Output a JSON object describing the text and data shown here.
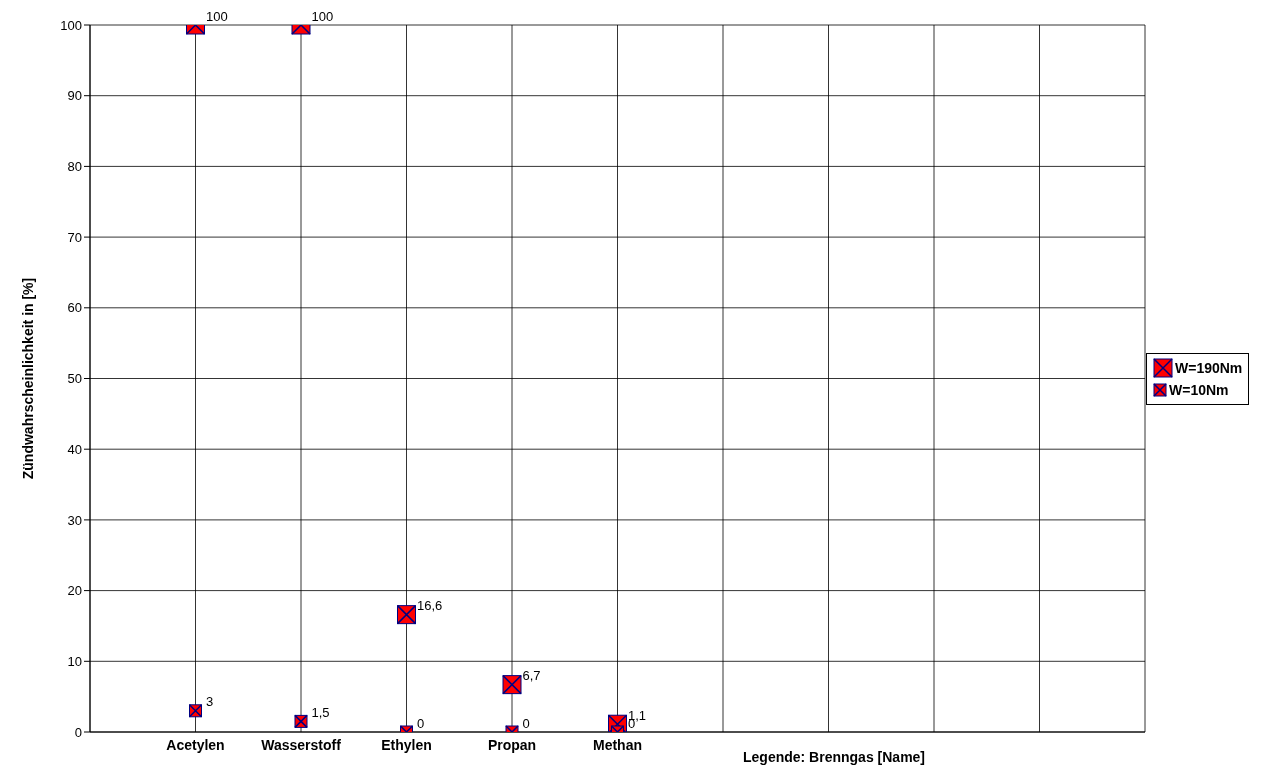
{
  "chart_data": {
    "type": "scatter",
    "ylabel": "Zündwahrscheinlichkeit in [%]",
    "xlabel": "Legende: Brenngas [Name]",
    "categories": [
      "Acetylen",
      "Wasserstoff",
      "Ethylen",
      "Propan",
      "Methan",
      null,
      null,
      null,
      null
    ],
    "series": [
      {
        "name": "W=190Nm",
        "color": "#ff0000",
        "values": [
          100,
          100,
          16.6,
          6.7,
          1.1,
          null,
          null,
          null,
          null
        ],
        "value_labels": [
          "100",
          "100",
          "16,6",
          "6,7",
          "1,1",
          null,
          null,
          null,
          null
        ]
      },
      {
        "name": "W=10Nm",
        "color": "#ff0000",
        "values": [
          3,
          1.5,
          0,
          0,
          0,
          null,
          null,
          null,
          null
        ],
        "value_labels": [
          "3",
          "1,5",
          "0",
          "0",
          "0",
          null,
          null,
          null,
          null
        ]
      }
    ],
    "ylim": [
      0,
      100
    ],
    "yticks": [
      0,
      10,
      20,
      30,
      40,
      50,
      60,
      70,
      80,
      90,
      100
    ],
    "grid": true,
    "legend": "right",
    "marker": "square"
  }
}
